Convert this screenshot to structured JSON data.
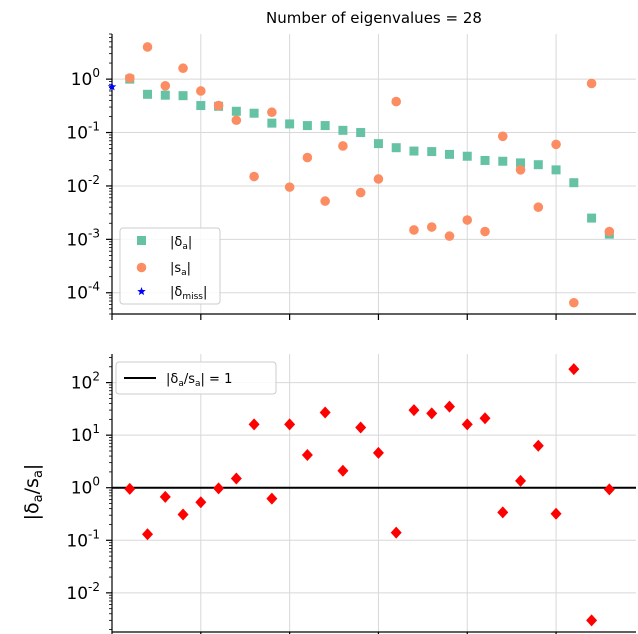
{
  "chart_data": [
    {
      "type": "scatter",
      "title": "Number of eigenvalues = 28",
      "yscale": "log",
      "ylim": [
        4e-05,
        7
      ],
      "xlim": [
        0,
        29.5
      ],
      "grid": true,
      "legend_position": "lower-left",
      "y_ticks": [
        {
          "value": 1,
          "base": "10",
          "exp": "0"
        },
        {
          "value": 0.1,
          "base": "10",
          "exp": "-1"
        },
        {
          "value": 0.01,
          "base": "10",
          "exp": "-2"
        },
        {
          "value": 0.001,
          "base": "10",
          "exp": "-3"
        },
        {
          "value": 0.0001,
          "base": "10",
          "exp": "-4"
        }
      ],
      "series": [
        {
          "name": "|δa|",
          "label_main": "|δ",
          "label_sub": "a",
          "label_end": "|",
          "marker": "square",
          "color": "#66c2a5",
          "x": [
            1,
            2,
            3,
            4,
            5,
            6,
            7,
            8,
            9,
            10,
            11,
            12,
            13,
            14,
            15,
            16,
            17,
            18,
            19,
            20,
            21,
            22,
            23,
            24,
            25,
            26,
            27,
            28
          ],
          "y": [
            1.0,
            0.52,
            0.5,
            0.49,
            0.32,
            0.31,
            0.25,
            0.23,
            0.15,
            0.145,
            0.135,
            0.135,
            0.11,
            0.1,
            0.062,
            0.052,
            0.045,
            0.044,
            0.039,
            0.036,
            0.03,
            0.029,
            0.027,
            0.025,
            0.02,
            0.0115,
            0.0025,
            0.00125
          ]
        },
        {
          "name": "|sa|",
          "label_main": "|s",
          "label_sub": "a",
          "label_end": "|",
          "marker": "circle",
          "color": "#fc8d62",
          "x": [
            1,
            2,
            3,
            4,
            5,
            6,
            7,
            8,
            9,
            10,
            11,
            12,
            13,
            14,
            15,
            16,
            17,
            18,
            19,
            20,
            21,
            22,
            23,
            24,
            25,
            26,
            27,
            28
          ],
          "y": [
            1.05,
            4.0,
            0.75,
            1.6,
            0.6,
            0.32,
            0.17,
            0.015,
            0.24,
            0.0095,
            0.034,
            0.0052,
            0.056,
            0.0075,
            0.0135,
            0.38,
            0.0015,
            0.0017,
            0.00115,
            0.0023,
            0.0014,
            0.085,
            0.02,
            0.004,
            0.06,
            6.5e-05,
            0.83,
            0.0014
          ]
        },
        {
          "name": "|δmiss|",
          "label_main": "|δ",
          "label_sub": "miss",
          "label_end": "|",
          "marker": "star",
          "color": "#0000ff",
          "x": [
            0
          ],
          "y": [
            0.72
          ]
        }
      ]
    },
    {
      "type": "scatter",
      "yscale": "log",
      "ylim": [
        0.0018,
        350
      ],
      "xlim": [
        0,
        29.5
      ],
      "grid": true,
      "ylabel": "|δa/sa|",
      "ylabel_parts": {
        "open": "|δ",
        "sub1": "a",
        "slash": "/s",
        "sub2": "a",
        "close": "|"
      },
      "legend_position": "top-left",
      "y_ticks": [
        {
          "value": 100,
          "base": "10",
          "exp": "2"
        },
        {
          "value": 10,
          "base": "10",
          "exp": "1"
        },
        {
          "value": 1,
          "base": "10",
          "exp": "0"
        },
        {
          "value": 0.1,
          "base": "10",
          "exp": "-1"
        },
        {
          "value": 0.01,
          "base": "10",
          "exp": "-2"
        }
      ],
      "reference_line": {
        "y": 1,
        "label": "|δa/sa| = 1",
        "label_parts": {
          "open": "|δ",
          "sub1": "a",
          "slash": "/s",
          "sub2": "a",
          "close": "| = 1"
        },
        "color": "#000000"
      },
      "series": [
        {
          "name": "ratio",
          "marker": "diamond",
          "color": "#ff0000",
          "x": [
            1,
            2,
            3,
            4,
            5,
            6,
            7,
            8,
            9,
            10,
            11,
            12,
            13,
            14,
            15,
            16,
            17,
            18,
            19,
            20,
            21,
            22,
            23,
            24,
            25,
            26,
            27,
            28
          ],
          "y": [
            0.95,
            0.13,
            0.67,
            0.31,
            0.53,
            0.97,
            1.5,
            16,
            0.62,
            16,
            4.2,
            27,
            2.1,
            14,
            4.6,
            0.14,
            30,
            26,
            35,
            16,
            21,
            0.34,
            1.35,
            6.3,
            0.32,
            180,
            0.003,
            0.93
          ]
        }
      ]
    }
  ]
}
